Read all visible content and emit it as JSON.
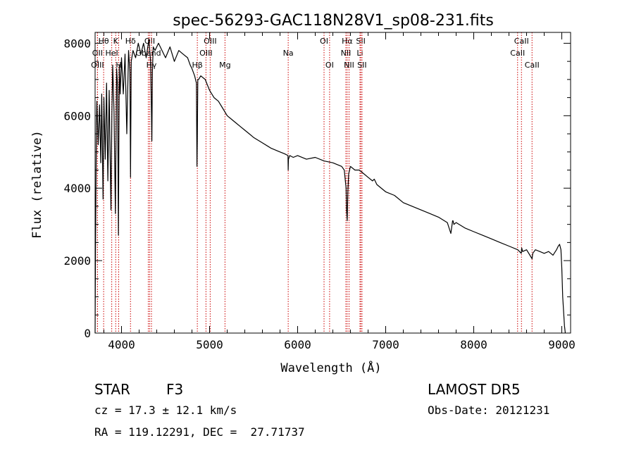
{
  "chart_data": {
    "type": "line",
    "title": "spec-56293-GAC118N28V1_sp08-231.fits",
    "xlabel": "Wavelength (Å)",
    "ylabel": "Flux (relative)",
    "xlim": [
      3700,
      9100
    ],
    "ylim": [
      0,
      8300
    ],
    "xticks": [
      4000,
      5000,
      6000,
      7000,
      8000,
      9000
    ],
    "yticks": [
      0,
      2000,
      4000,
      6000,
      8000
    ],
    "grid": false,
    "line_color": "#000000",
    "marker_color": "#cc0000",
    "series": [
      {
        "x": [
          3700,
          3705,
          3715,
          3720,
          3735,
          3750,
          3765,
          3775,
          3790,
          3800,
          3815,
          3830,
          3845,
          3860,
          3880,
          3890,
          3900,
          3915,
          3930,
          3945,
          3955,
          3965,
          3970,
          3975,
          3985,
          4000,
          4020,
          4040,
          4060,
          4080,
          4095,
          4102,
          4110,
          4130,
          4160,
          4190,
          4220,
          4250,
          4280,
          4310,
          4330,
          4340,
          4345,
          4350,
          4360,
          4380,
          4420,
          4460,
          4500,
          4550,
          4600,
          4650,
          4700,
          4750,
          4780,
          4800,
          4830,
          4850,
          4857,
          4861,
          4866,
          4875,
          4900,
          4950,
          5000,
          5050,
          5100,
          5150,
          5200,
          5250,
          5300,
          5350,
          5400,
          5450,
          5500,
          5600,
          5700,
          5800,
          5850,
          5890,
          5893,
          5896,
          5910,
          5950,
          6000,
          6100,
          6200,
          6300,
          6400,
          6500,
          6530,
          6550,
          6556,
          6563,
          6570,
          6580,
          6600,
          6650,
          6700,
          6750,
          6800,
          6850,
          6870,
          6900,
          7000,
          7100,
          7200,
          7300,
          7400,
          7500,
          7600,
          7700,
          7740,
          7760,
          7765,
          7775,
          7800,
          7900,
          8000,
          8100,
          8200,
          8300,
          8400,
          8500,
          8540,
          8545,
          8555,
          8600,
          8650,
          8662,
          8670,
          8700,
          8750,
          8800,
          8850,
          8900,
          8940,
          8960,
          8975,
          8990,
          9000,
          9010,
          9030,
          9040
        ],
        "y": [
          0,
          2400,
          5800,
          6400,
          5200,
          6300,
          4700,
          6600,
          3700,
          6500,
          4800,
          6900,
          4200,
          6700,
          3400,
          6000,
          7400,
          6100,
          3300,
          7300,
          6800,
          2700,
          5400,
          7400,
          6600,
          7600,
          6600,
          7700,
          5500,
          7800,
          7200,
          4300,
          7500,
          7800,
          7600,
          8000,
          7700,
          8000,
          7600,
          8100,
          7500,
          6100,
          5300,
          7200,
          7900,
          7800,
          8000,
          7800,
          7600,
          7900,
          7500,
          7800,
          7700,
          7600,
          7400,
          7300,
          7100,
          6900,
          4600,
          5300,
          7000,
          7000,
          7100,
          7000,
          6700,
          6500,
          6400,
          6200,
          6000,
          5900,
          5800,
          5700,
          5600,
          5500,
          5400,
          5250,
          5100,
          5000,
          4950,
          4900,
          4500,
          4800,
          4900,
          4850,
          4900,
          4800,
          4850,
          4750,
          4700,
          4600,
          4500,
          4000,
          3400,
          3100,
          3900,
          4400,
          4600,
          4500,
          4500,
          4400,
          4300,
          4200,
          4250,
          4100,
          3900,
          3800,
          3600,
          3500,
          3400,
          3300,
          3200,
          3050,
          2750,
          3100,
          3100,
          3000,
          3050,
          2900,
          2800,
          2700,
          2600,
          2500,
          2400,
          2300,
          2200,
          2350,
          2250,
          2300,
          2100,
          2050,
          2200,
          2300,
          2250,
          2200,
          2250,
          2150,
          2300,
          2400,
          2450,
          2300,
          1800,
          1000,
          200,
          0
        ]
      }
    ],
    "line_markers": [
      {
        "label": "Hθ",
        "x": 3797,
        "row": 1
      },
      {
        "label": "OII",
        "x": 3727,
        "row": 2
      },
      {
        "label": "OIII",
        "x": 3727,
        "row": 3
      },
      {
        "label": "K",
        "x": 3934,
        "row": 1
      },
      {
        "label": "HeI",
        "x": 3889,
        "row": 2
      },
      {
        "label": "H",
        "x": 3968,
        "row": 3
      },
      {
        "label": "Hδ",
        "x": 4102,
        "row": 1
      },
      {
        "label": "OII",
        "x": 4320,
        "row": 1
      },
      {
        "label": "Gband",
        "x": 4304,
        "row": 2
      },
      {
        "label": "Hγ",
        "x": 4340,
        "row": 3
      },
      {
        "label": "OIII",
        "x": 5007,
        "row": 1
      },
      {
        "label": "OIII",
        "x": 4959,
        "row": 2
      },
      {
        "label": "Hβ",
        "x": 4861,
        "row": 3
      },
      {
        "label": "Mg",
        "x": 5175,
        "row": 3
      },
      {
        "label": "Na",
        "x": 5893,
        "row": 2
      },
      {
        "label": "OI",
        "x": 6300,
        "row": 1
      },
      {
        "label": "OI",
        "x": 6363,
        "row": 3
      },
      {
        "label": "Hα",
        "x": 6563,
        "row": 1
      },
      {
        "label": "SII",
        "x": 6717,
        "row": 1
      },
      {
        "label": "NII",
        "x": 6548,
        "row": 2
      },
      {
        "label": "Li",
        "x": 6708,
        "row": 2
      },
      {
        "label": "NII",
        "x": 6584,
        "row": 3
      },
      {
        "label": "SII",
        "x": 6731,
        "row": 3
      },
      {
        "label": "CaII",
        "x": 8542,
        "row": 1
      },
      {
        "label": "CaII",
        "x": 8498,
        "row": 2
      },
      {
        "label": "CaII",
        "x": 8662,
        "row": 3
      }
    ]
  },
  "info": {
    "class_label": "STAR",
    "subclass": "F3",
    "cz": "cz = 17.3 ± 12.1 km/s",
    "coords": "RA = 119.12291, DEC =  27.71737",
    "survey": "LAMOST DR5",
    "obs_date": "Obs-Date: 20121231"
  }
}
